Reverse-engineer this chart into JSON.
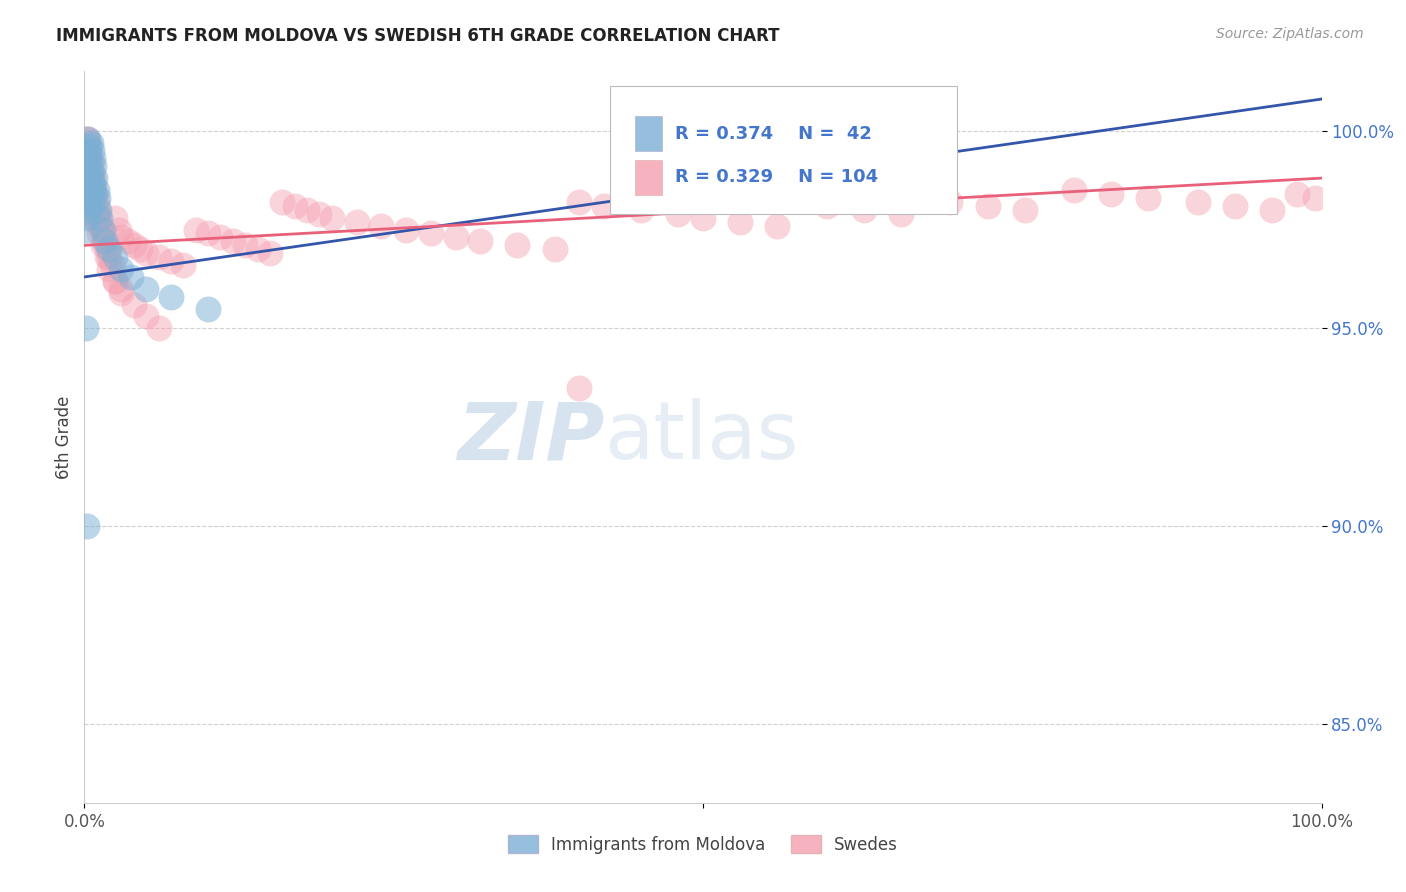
{
  "title": "IMMIGRANTS FROM MOLDOVA VS SWEDISH 6TH GRADE CORRELATION CHART",
  "source": "Source: ZipAtlas.com",
  "ylabel": "6th Grade",
  "legend_blue_label": "Immigrants from Moldova",
  "legend_pink_label": "Swedes",
  "legend_R_blue": "R = 0.374",
  "legend_N_blue": "N =  42",
  "legend_R_pink": "R = 0.329",
  "legend_N_pink": "N = 104",
  "blue_color": "#7BAFD4",
  "pink_color": "#F4A0B0",
  "blue_line_color": "#3355AA",
  "pink_line_color": "#E8607A",
  "title_color": "#222222",
  "source_color": "#999999",
  "tick_color_y": "#4477CC",
  "tick_color_x": "#555555",
  "ylabel_color": "#444444",
  "grid_color": "#CCCCCC",
  "legend_text_color": "#4477CC",
  "watermark_color": "#D8E8F8",
  "xlim": [
    0.0,
    1.0
  ],
  "ylim": [
    0.83,
    1.015
  ],
  "yticks": [
    0.85,
    0.9,
    0.95,
    1.0
  ],
  "ytick_labels": [
    "85.0%",
    "90.0%",
    "95.0%",
    "100.0%"
  ],
  "blue_x": [
    0.001,
    0.001,
    0.001,
    0.002,
    0.002,
    0.002,
    0.002,
    0.003,
    0.003,
    0.003,
    0.003,
    0.003,
    0.004,
    0.004,
    0.004,
    0.004,
    0.005,
    0.005,
    0.005,
    0.006,
    0.006,
    0.006,
    0.007,
    0.007,
    0.008,
    0.008,
    0.009,
    0.01,
    0.011,
    0.012,
    0.013,
    0.015,
    0.017,
    0.02,
    0.025,
    0.03,
    0.038,
    0.05,
    0.07,
    0.1,
    0.001,
    0.002
  ],
  "blue_y": [
    0.995,
    0.992,
    0.988,
    0.985,
    0.982,
    0.978,
    0.975,
    0.998,
    0.994,
    0.991,
    0.987,
    0.983,
    0.996,
    0.993,
    0.989,
    0.98,
    0.997,
    0.99,
    0.984,
    0.995,
    0.988,
    0.981,
    0.993,
    0.986,
    0.991,
    0.984,
    0.988,
    0.985,
    0.983,
    0.98,
    0.978,
    0.975,
    0.972,
    0.97,
    0.968,
    0.965,
    0.963,
    0.96,
    0.958,
    0.955,
    0.95,
    0.9
  ],
  "pink_x": [
    0.001,
    0.001,
    0.001,
    0.002,
    0.002,
    0.002,
    0.003,
    0.003,
    0.003,
    0.003,
    0.004,
    0.004,
    0.004,
    0.005,
    0.005,
    0.005,
    0.006,
    0.006,
    0.007,
    0.007,
    0.008,
    0.008,
    0.009,
    0.01,
    0.01,
    0.011,
    0.012,
    0.013,
    0.015,
    0.016,
    0.018,
    0.02,
    0.022,
    0.025,
    0.028,
    0.03,
    0.035,
    0.04,
    0.045,
    0.05,
    0.06,
    0.07,
    0.08,
    0.09,
    0.1,
    0.11,
    0.12,
    0.13,
    0.14,
    0.15,
    0.16,
    0.17,
    0.18,
    0.19,
    0.2,
    0.22,
    0.24,
    0.26,
    0.28,
    0.3,
    0.32,
    0.35,
    0.38,
    0.4,
    0.42,
    0.45,
    0.48,
    0.5,
    0.53,
    0.56,
    0.6,
    0.63,
    0.66,
    0.7,
    0.73,
    0.76,
    0.8,
    0.83,
    0.86,
    0.9,
    0.93,
    0.96,
    0.98,
    0.995,
    0.4,
    0.025,
    0.03,
    0.002,
    0.003,
    0.004,
    0.005,
    0.006,
    0.007,
    0.008,
    0.01,
    0.012,
    0.015,
    0.018,
    0.02,
    0.025,
    0.03,
    0.04,
    0.05,
    0.06
  ],
  "pink_y": [
    0.99,
    0.985,
    0.98,
    0.998,
    0.993,
    0.988,
    0.996,
    0.991,
    0.986,
    0.982,
    0.994,
    0.989,
    0.984,
    0.992,
    0.987,
    0.982,
    0.99,
    0.985,
    0.988,
    0.983,
    0.986,
    0.981,
    0.984,
    0.982,
    0.978,
    0.98,
    0.978,
    0.976,
    0.974,
    0.972,
    0.97,
    0.968,
    0.966,
    0.978,
    0.975,
    0.973,
    0.972,
    0.971,
    0.97,
    0.969,
    0.968,
    0.967,
    0.966,
    0.975,
    0.974,
    0.973,
    0.972,
    0.971,
    0.97,
    0.969,
    0.982,
    0.981,
    0.98,
    0.979,
    0.978,
    0.977,
    0.976,
    0.975,
    0.974,
    0.973,
    0.972,
    0.971,
    0.97,
    0.982,
    0.981,
    0.98,
    0.979,
    0.978,
    0.977,
    0.976,
    0.981,
    0.98,
    0.979,
    0.982,
    0.981,
    0.98,
    0.985,
    0.984,
    0.983,
    0.982,
    0.981,
    0.98,
    0.984,
    0.983,
    0.935,
    0.962,
    0.96,
    0.998,
    0.995,
    0.992,
    0.989,
    0.986,
    0.983,
    0.98,
    0.977,
    0.974,
    0.971,
    0.968,
    0.965,
    0.962,
    0.959,
    0.956,
    0.953,
    0.95
  ],
  "blue_trend_x": [
    0.0,
    1.0
  ],
  "blue_trend_y": [
    0.963,
    1.008
  ],
  "pink_trend_x": [
    0.0,
    1.0
  ],
  "pink_trend_y": [
    0.971,
    0.988
  ]
}
